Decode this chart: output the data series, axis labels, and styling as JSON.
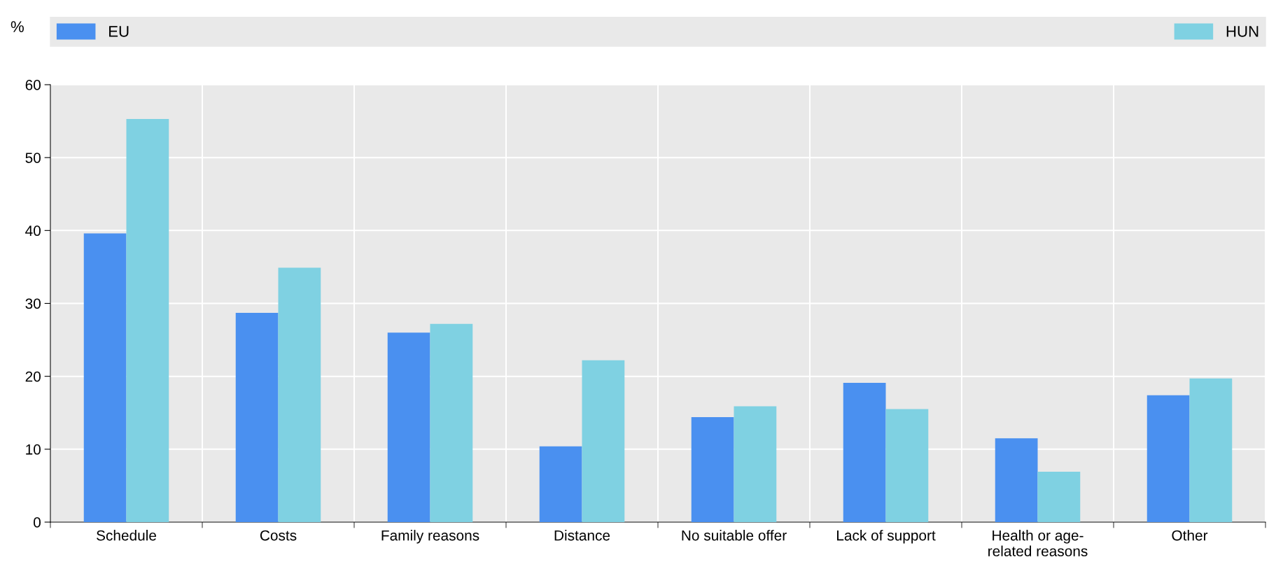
{
  "chart_data": {
    "type": "bar",
    "ylabel": "%",
    "categories": [
      "Schedule",
      "Costs",
      "Family reasons",
      "Distance",
      "No suitable offer",
      "Lack of support",
      "Health or age-\nrelated reasons",
      "Other"
    ],
    "series": [
      {
        "name": "EU",
        "color": "#4a90f0",
        "values": [
          39.6,
          28.7,
          26.0,
          10.4,
          14.4,
          19.1,
          11.5,
          17.4
        ]
      },
      {
        "name": "HUN",
        "color": "#7fd1e2",
        "values": [
          55.3,
          34.9,
          27.2,
          22.2,
          15.9,
          15.5,
          6.9,
          19.7
        ]
      }
    ],
    "ylim": [
      0,
      60
    ],
    "yticks": [
      0,
      10,
      20,
      30,
      40,
      50,
      60
    ],
    "grid": true,
    "legend": "top"
  }
}
